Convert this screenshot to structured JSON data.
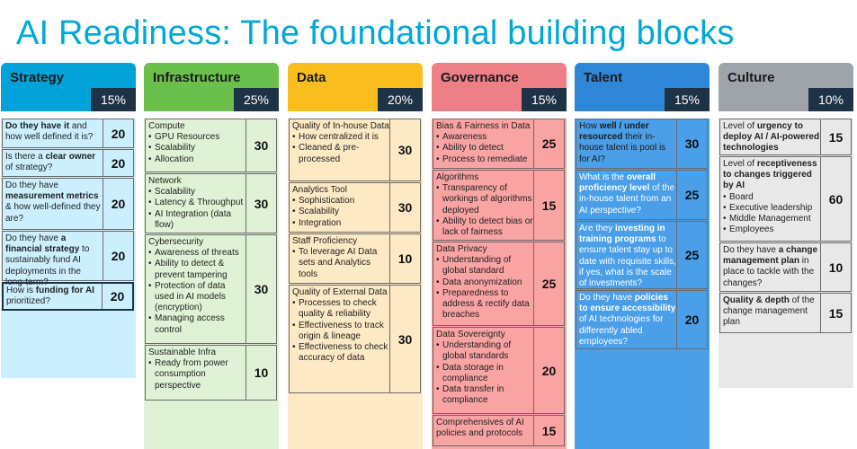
{
  "title": "AI Readiness: The foundational building blocks",
  "colors": {
    "title": "#00a8d6",
    "strategy": "#00a3d9",
    "strategy_light": "#ccefff",
    "infrastructure": "#6bc04b",
    "infrastructure_light": "#dff2d5",
    "data": "#f9be1e",
    "data_light": "#fde9c4",
    "governance": "#ef7f86",
    "governance_light": "#f9a3a3",
    "talent": "#2e86d8",
    "talent_light": "#4a9fe8",
    "culture": "#9ea4aa",
    "culture_light": "#e8e8e8",
    "pct_badge": "#1f3347"
  },
  "columns": {
    "strategy": {
      "name": "Strategy",
      "pct": "15%",
      "items": [
        {
          "parts": [
            {
              "t": "Do they have it",
              "b": true
            },
            {
              "t": " and how well defined it is?",
              "b": false
            }
          ],
          "score": "20"
        },
        {
          "parts": [
            {
              "t": "Is there a ",
              "b": false
            },
            {
              "t": "clear owner",
              "b": true
            },
            {
              "t": " of strategy?",
              "b": false
            }
          ],
          "score": "20"
        },
        {
          "parts": [
            {
              "t": "Do they have ",
              "b": false
            },
            {
              "t": "measurement metrics",
              "b": true
            },
            {
              "t": " & how well-defined they are?",
              "b": false
            }
          ],
          "score": "20"
        },
        {
          "parts": [
            {
              "t": "Do they have ",
              "b": false
            },
            {
              "t": "a financial strategy",
              "b": true
            },
            {
              "t": " to sustainably fund AI deployments in the long-term?",
              "b": false
            }
          ],
          "score": "20"
        },
        {
          "parts": [
            {
              "t": "How is ",
              "b": false
            },
            {
              "t": "funding for AI",
              "b": true
            },
            {
              "t": " prioritized?",
              "b": false
            }
          ],
          "score": "20"
        }
      ]
    },
    "infrastructure": {
      "name": "Infrastructure",
      "pct": "25%",
      "items": [
        {
          "head": "Compute",
          "bullets": [
            "GPU Resources",
            "Scalability",
            "Allocation"
          ],
          "score": "30"
        },
        {
          "head": "Network",
          "bullets": [
            "Scalability",
            "Latency & Throughput",
            "AI Integration (data flow)"
          ],
          "score": "30"
        },
        {
          "head": "Cybersecurity",
          "bullets": [
            "Awareness of threats",
            "Ability to detect & prevent tampering",
            "Protection of data used in AI models (encryption)",
            "Managing access control"
          ],
          "score": "30"
        },
        {
          "head": "Sustainable Infra",
          "bullets": [
            "Ready from power consumption perspective"
          ],
          "score": "10"
        }
      ]
    },
    "data": {
      "name": "Data",
      "pct": "20%",
      "items": [
        {
          "head": "Quality of In-house Data",
          "bullets": [
            "How centralized it is",
            "Cleaned & pre-processed"
          ],
          "score": "30"
        },
        {
          "head": "Analytics Tool",
          "bullets": [
            "Sophistication",
            "Scalability",
            "Integration"
          ],
          "score": "30"
        },
        {
          "head": "Staff Proficiency",
          "bullets": [
            "To leverage AI Data sets and Analytics tools"
          ],
          "score": "10"
        },
        {
          "head": "Quality of External Data",
          "bullets": [
            "Processes to check quality & reliability",
            "Effectiveness to track origin & lineage",
            "Effectiveness to check accuracy of data"
          ],
          "score": "30"
        }
      ]
    },
    "governance": {
      "name": "Governance",
      "pct": "15%",
      "items": [
        {
          "head": "Bias & Fairness in Data",
          "bullets": [
            "Awareness",
            "Ability to detect",
            "Process to remediate"
          ],
          "score": "25"
        },
        {
          "head": "Algorithms",
          "bullets": [
            "Transparency of workings of algorithms deployed",
            "Ability to detect bias or lack of fairness"
          ],
          "score": "15"
        },
        {
          "head": "Data Privacy",
          "bullets": [
            "Understanding of global standard",
            "Data anonymization",
            "Preparedness to address & rectify data breaches"
          ],
          "score": "25"
        },
        {
          "head": "Data Sovereignty",
          "bullets": [
            "Understanding of global standards",
            "Data storage in compliance",
            "Data transfer in compliance"
          ],
          "score": "20"
        },
        {
          "head": "Comprehensives of AI policies and protocols",
          "bullets": [],
          "score": "15"
        }
      ]
    },
    "talent": {
      "name": "Talent",
      "pct": "15%",
      "items": [
        {
          "parts": [
            {
              "t": "How ",
              "b": false
            },
            {
              "t": "well / under resourced",
              "b": true
            },
            {
              "t": " their in-house talent is pool is for AI?",
              "b": false
            }
          ],
          "score": "30"
        },
        {
          "parts": [
            {
              "t": "What is the ",
              "b": false
            },
            {
              "t": "overall proficiency level",
              "b": true
            },
            {
              "t": " of the in-house talent from an AI perspective?",
              "b": false
            }
          ],
          "score": "25"
        },
        {
          "parts": [
            {
              "t": "Are they ",
              "b": false
            },
            {
              "t": "investing in training programs",
              "b": true
            },
            {
              "t": " to ensure talent stay up to date with requisite skills, if yes, what is the scale of investments?",
              "b": false
            }
          ],
          "score": "25"
        },
        {
          "parts": [
            {
              "t": "Do they have ",
              "b": false
            },
            {
              "t": "policies to ensure accessibility",
              "b": true
            },
            {
              "t": " of AI technologies for differently abled employees?",
              "b": false
            }
          ],
          "score": "20"
        }
      ]
    },
    "culture": {
      "name": "Culture",
      "pct": "10%",
      "items": [
        {
          "parts": [
            {
              "t": "Level of ",
              "b": false
            },
            {
              "t": "urgency to deploy AI / AI-powered technologies",
              "b": true
            }
          ],
          "score": "15"
        },
        {
          "parts": [
            {
              "t": "Level of ",
              "b": false
            },
            {
              "t": "receptiveness to changes triggered by AI",
              "b": true
            }
          ],
          "bullets": [
            "Board",
            "Executive leadership",
            "Middle Management",
            "Employees"
          ],
          "score": "60"
        },
        {
          "parts": [
            {
              "t": "Do they have ",
              "b": false
            },
            {
              "t": "a change management plan",
              "b": true
            },
            {
              "t": " in place to tackle with the changes?",
              "b": false
            }
          ],
          "score": "10"
        },
        {
          "parts": [
            {
              "t": "Quality & depth",
              "b": true
            },
            {
              "t": " of the change management plan",
              "b": false
            }
          ],
          "score": "15"
        }
      ]
    }
  }
}
